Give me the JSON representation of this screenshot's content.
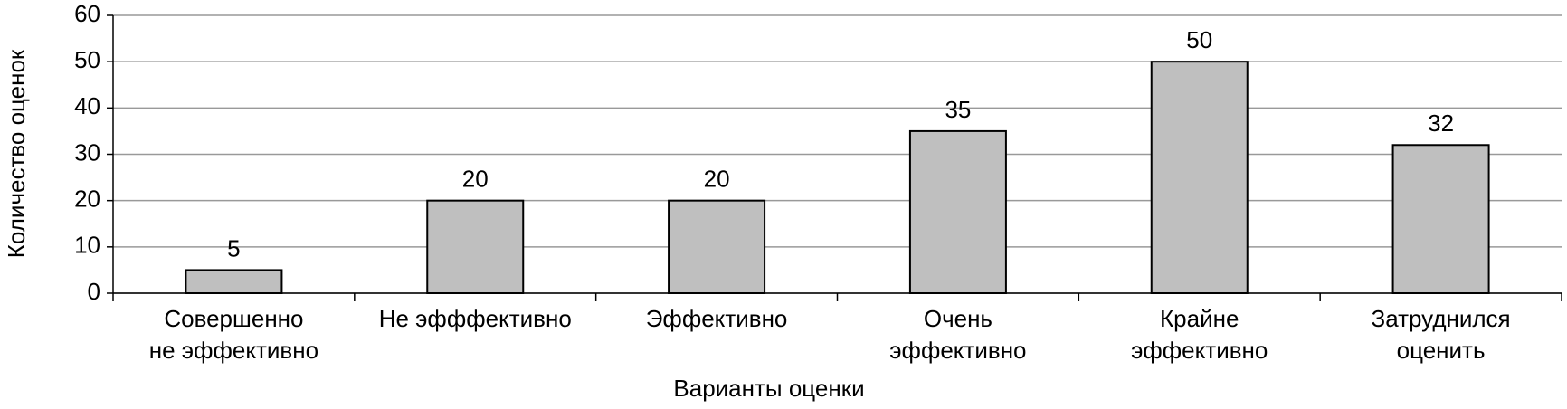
{
  "chart_data": {
    "type": "bar",
    "categories": [
      "Совершенно\nне эффективно",
      "Не эфффективно",
      "Эффективно",
      "Очень\nэффективно",
      "Крайне\nэффективно",
      "Затруднился\nоценить"
    ],
    "values": [
      5,
      20,
      20,
      35,
      50,
      32
    ],
    "color": "#bfbfbf",
    "x_label": "Варианты оценки",
    "y_label": "Количество оценок",
    "ylim": [
      0,
      60
    ],
    "yticks": [
      0,
      10,
      20,
      30,
      40,
      50,
      60
    ],
    "grid": true
  }
}
